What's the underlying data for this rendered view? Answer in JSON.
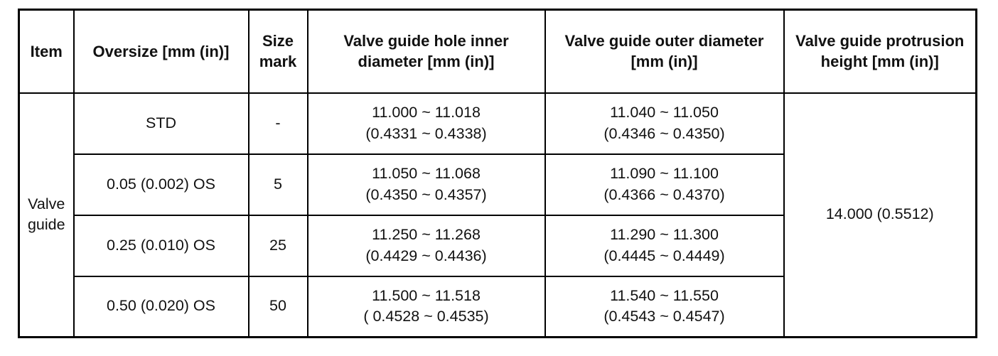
{
  "table": {
    "columns": [
      {
        "label": "Item"
      },
      {
        "label": "Oversize [mm (in)]"
      },
      {
        "label": "Size mark"
      },
      {
        "label": "Valve guide hole inner diameter [mm (in)]"
      },
      {
        "label": "Valve guide outer diameter [mm (in)]"
      },
      {
        "label": "Valve guide protrusion height [mm (in)]"
      }
    ],
    "item_label": "Valve guide",
    "protrusion_height": "14.000 (0.5512)",
    "rows": [
      {
        "oversize": "STD",
        "size_mark": "-",
        "inner_mm": "11.000 ~ 11.018",
        "inner_in": "(0.4331 ~ 0.4338)",
        "outer_mm": "11.040 ~ 11.050",
        "outer_in": "(0.4346 ~ 0.4350)"
      },
      {
        "oversize": "0.05 (0.002) OS",
        "size_mark": "5",
        "inner_mm": "11.050 ~ 11.068",
        "inner_in": "(0.4350 ~ 0.4357)",
        "outer_mm": "11.090 ~ 11.100",
        "outer_in": "(0.4366 ~ 0.4370)"
      },
      {
        "oversize": "0.25 (0.010) OS",
        "size_mark": "25",
        "inner_mm": "11.250 ~ 11.268",
        "inner_in": "(0.4429 ~ 0.4436)",
        "outer_mm": "11.290 ~ 11.300",
        "outer_in": "(0.4445 ~ 0.4449)"
      },
      {
        "oversize": "0.50 (0.020) OS",
        "size_mark": "50",
        "inner_mm": "11.500 ~ 11.518",
        "inner_in": "( 0.4528 ~ 0.4535)",
        "outer_mm": "11.540 ~ 11.550",
        "outer_in": "(0.4543 ~ 0.4547)"
      }
    ]
  },
  "colors": {
    "border": "#000000",
    "background": "#ffffff",
    "text": "#111111"
  }
}
